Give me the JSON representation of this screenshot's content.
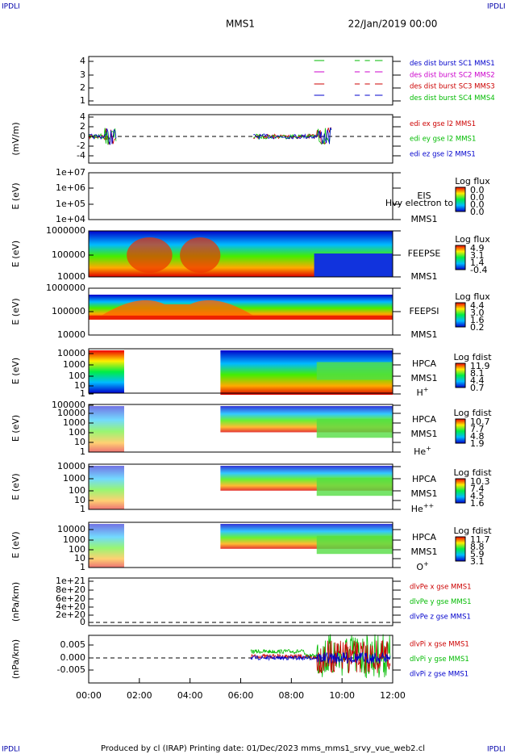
{
  "header": {
    "corner_left": "IPDLI",
    "corner_right": "IPDLI",
    "title": "MMS1",
    "date": "22/Jan/2019 00:00"
  },
  "panels": [
    {
      "ticks": [
        "4",
        "3",
        "2",
        "1"
      ],
      "legend": [
        {
          "text": "des dist burst SC1 MMS1",
          "color": "#0000cc"
        },
        {
          "text": "des dist burst SC2 MMS2",
          "color": "#cc00cc"
        },
        {
          "text": "des dist burst SC3 MMS3",
          "color": "#cc0000"
        },
        {
          "text": "des dist burst SC4 MMS4",
          "color": "#00bb00"
        }
      ]
    },
    {
      "y_label": "(mV/m)",
      "ticks": [
        "4",
        "2",
        "0",
        "-2",
        "-4"
      ],
      "legend": [
        {
          "text": "edi ex gse l2 MMS1",
          "color": "#cc0000"
        },
        {
          "text": "edi ey gse l2 MMS1",
          "color": "#00bb00"
        },
        {
          "text": "edi ez gse l2 MMS1",
          "color": "#0000cc"
        }
      ]
    },
    {
      "y_label": "E (eV)",
      "ticks": [
        "1e+07",
        "1e+06",
        "1e+05",
        "1e+04"
      ],
      "instrument": [
        "EIS",
        "MMS1"
      ],
      "note": "Hvy electron to",
      "colorbar": {
        "title": "Log flux",
        "ticks": [
          "0.0",
          "0.0",
          "0.0",
          "0.0"
        ]
      }
    },
    {
      "y_label": "E (eV)",
      "ticks": [
        "1000000",
        "100000",
        "10000"
      ],
      "instrument": [
        "FEEPSE",
        "MMS1"
      ],
      "colorbar": {
        "title": "Log flux",
        "ticks": [
          "4.9",
          "3.1",
          "1.4",
          "-0.4"
        ]
      }
    },
    {
      "y_label": "E (eV)",
      "ticks": [
        "1000000",
        "100000",
        "10000"
      ],
      "instrument": [
        "FEEPSI",
        "MMS1"
      ],
      "colorbar": {
        "title": "Log flux",
        "ticks": [
          "4.4",
          "3.0",
          "1.6",
          "0.2"
        ]
      }
    },
    {
      "y_label": "E (eV)",
      "ticks": [
        "10000",
        "1000",
        "100",
        "10",
        "1"
      ],
      "instrument": [
        "HPCA",
        "MMS1"
      ],
      "species": {
        "base": "H",
        "sup": "+"
      },
      "colorbar": {
        "title": "Log fdist",
        "ticks": [
          "11.9",
          "8.1",
          "4.4",
          "0.7"
        ]
      }
    },
    {
      "y_label": "E (eV)",
      "ticks": [
        "100000",
        "10000",
        "1000",
        "100",
        "10",
        "1"
      ],
      "instrument": [
        "HPCA",
        "MMS1"
      ],
      "species": {
        "base": "He",
        "sup": "+"
      },
      "colorbar": {
        "title": "Log fdist",
        "ticks": [
          "10.7",
          "7.7",
          "4.8",
          "1.9"
        ]
      }
    },
    {
      "y_label": "E (eV)",
      "ticks": [
        "10000",
        "1000",
        "100",
        "10",
        "1"
      ],
      "instrument": [
        "HPCA",
        "MMS1"
      ],
      "species": {
        "base": "He",
        "sup": "++"
      },
      "colorbar": {
        "title": "Log fdist",
        "ticks": [
          "10.3",
          "7.4",
          "4.5",
          "1.6"
        ]
      }
    },
    {
      "y_label": "E (eV)",
      "ticks": [
        "10000",
        "1000",
        "100",
        "10",
        "1"
      ],
      "instrument": [
        "HPCA",
        "MMS1"
      ],
      "species": {
        "base": "O",
        "sup": "+"
      },
      "colorbar": {
        "title": "Log fdist",
        "ticks": [
          "11.7",
          "8.8",
          "5.9",
          "3.1"
        ]
      }
    },
    {
      "y_label": "(nPa/km)",
      "ticks": [
        "1e+21",
        "8e+20",
        "6e+20",
        "4e+20",
        "2e+20",
        "0"
      ],
      "legend": [
        {
          "text": "dlvPe x gse MMS1",
          "color": "#cc0000"
        },
        {
          "text": "dlvPe y gse MMS1",
          "color": "#00bb00"
        },
        {
          "text": "dlvPe z gse MMS1",
          "color": "#0000cc"
        }
      ]
    },
    {
      "y_label": "(nPa/km)",
      "ticks": [
        "0.005",
        "0.000",
        "-0.005"
      ],
      "legend": [
        {
          "text": "dlvPi x gse MMS1",
          "color": "#cc0000"
        },
        {
          "text": "dlvPi y gse MMS1",
          "color": "#00bb00"
        },
        {
          "text": "dlvPi z gse MMS1",
          "color": "#0000cc"
        }
      ]
    }
  ],
  "x_ticks": [
    "00:00",
    "02:00",
    "04:00",
    "06:00",
    "08:00",
    "10:00",
    "12:00"
  ],
  "footer": {
    "text": "Produced by cl (IRAP)   Printing date: 01/Dec/2023   mms_mms1_srvy_vue_web2.cl",
    "corner_left": "IPDLI",
    "corner_right": "IPDLI"
  }
}
